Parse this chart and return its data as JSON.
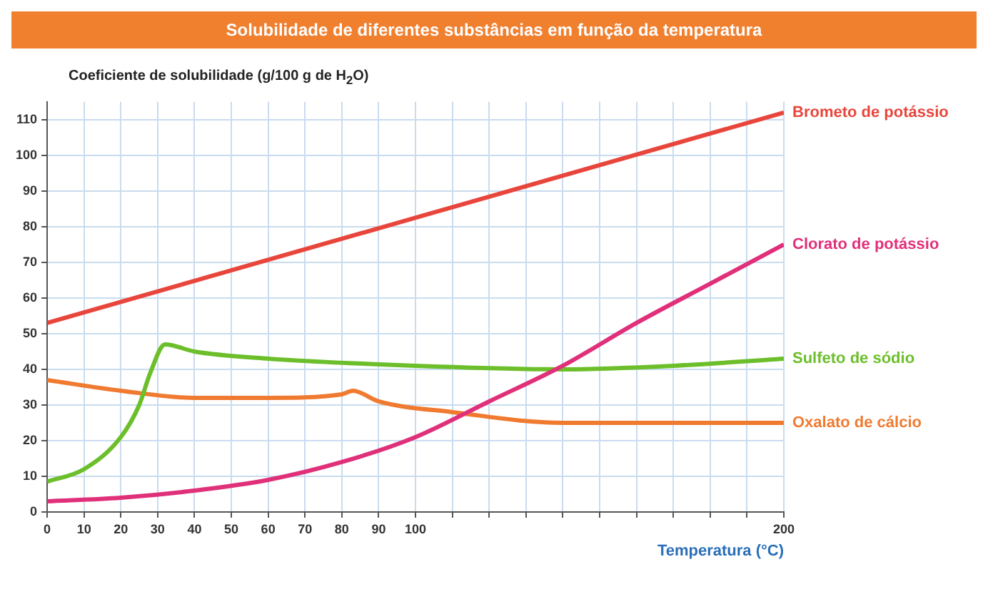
{
  "chart_data": {
    "type": "line",
    "title": "Solubilidade de diferentes substâncias em função da temperatura",
    "ylabel": "Coeficiente de solubilidade (g/100 g de H$_{2}$O)",
    "xlabel": "Temperatura (°C)",
    "xlim": [
      0,
      200
    ],
    "xticks": [
      0,
      10,
      20,
      30,
      40,
      50,
      60,
      70,
      80,
      90,
      100,
      {
        "value": 110,
        "label": null
      },
      {
        "value": 120,
        "label": null
      },
      {
        "value": 130,
        "label": null
      },
      {
        "value": 140,
        "label": null
      },
      {
        "value": 150,
        "label": null
      },
      {
        "value": 160,
        "label": null
      },
      {
        "value": 170,
        "label": null
      },
      {
        "value": 180,
        "label": null
      },
      {
        "value": 190,
        "label": null
      },
      200
    ],
    "ylim": [
      0,
      115
    ],
    "yticks": [
      0,
      10,
      20,
      30,
      40,
      50,
      60,
      70,
      80,
      90,
      100,
      110
    ],
    "grid": true,
    "legend": false,
    "marker": "none",
    "series": [
      {
        "name": "Brometo de potássio",
        "color": "#e8463c",
        "x": [
          0,
          200
        ],
        "values": [
          53,
          112
        ]
      },
      {
        "name": "Clorato de potássio",
        "color": "#e0307a",
        "x": [
          0,
          20,
          40,
          60,
          80,
          100,
          120,
          140,
          160,
          180,
          200
        ],
        "values": [
          3,
          4,
          6,
          9,
          14,
          21,
          31,
          41,
          53,
          64,
          75
        ]
      },
      {
        "name": "Sulfeto de sódio",
        "color": "#6cbf2a",
        "x": [
          0,
          10,
          20,
          25,
          28,
          32,
          40,
          60,
          100,
          140,
          170,
          200
        ],
        "values": [
          8.5,
          12,
          21,
          30,
          39,
          47,
          45,
          43,
          41,
          40,
          41,
          43
        ]
      },
      {
        "name": "Oxalato de cálcio",
        "color": "#f07a30",
        "x": [
          0,
          20,
          40,
          60,
          80,
          83,
          90,
          110,
          140,
          200
        ],
        "values": [
          37,
          34,
          32,
          32,
          33,
          34,
          31,
          28,
          25,
          25
        ]
      }
    ]
  }
}
